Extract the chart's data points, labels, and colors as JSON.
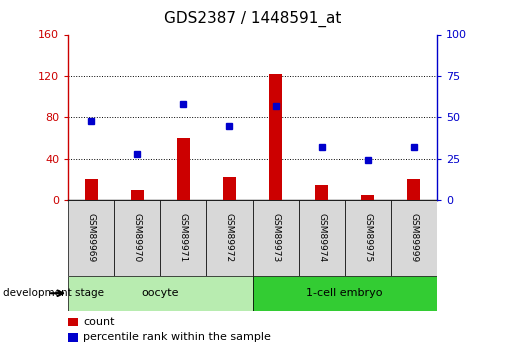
{
  "title": "GDS2387 / 1448591_at",
  "samples": [
    "GSM89969",
    "GSM89970",
    "GSM89971",
    "GSM89972",
    "GSM89973",
    "GSM89974",
    "GSM89975",
    "GSM89999"
  ],
  "counts": [
    20,
    10,
    60,
    22,
    122,
    15,
    5,
    20
  ],
  "percentiles": [
    48,
    28,
    58,
    45,
    57,
    32,
    24,
    32
  ],
  "groups": [
    {
      "label": "oocyte",
      "start": 0,
      "end": 4,
      "color": "#b8ecb0"
    },
    {
      "label": "1-cell embryo",
      "start": 4,
      "end": 8,
      "color": "#33cc33"
    }
  ],
  "ylim_left": [
    0,
    160
  ],
  "ylim_right": [
    0,
    100
  ],
  "yticks_left": [
    0,
    40,
    80,
    120,
    160
  ],
  "yticks_right": [
    0,
    25,
    50,
    75,
    100
  ],
  "bar_color": "#CC0000",
  "dot_color": "#0000CC",
  "grid_color": "#000000",
  "left_tick_color": "#CC0000",
  "right_tick_color": "#0000CC",
  "title_fontsize": 11,
  "label_box_color": "#D8D8D8",
  "legend_count_label": "count",
  "legend_pct_label": "percentile rank within the sample",
  "dev_stage_label": "development stage"
}
